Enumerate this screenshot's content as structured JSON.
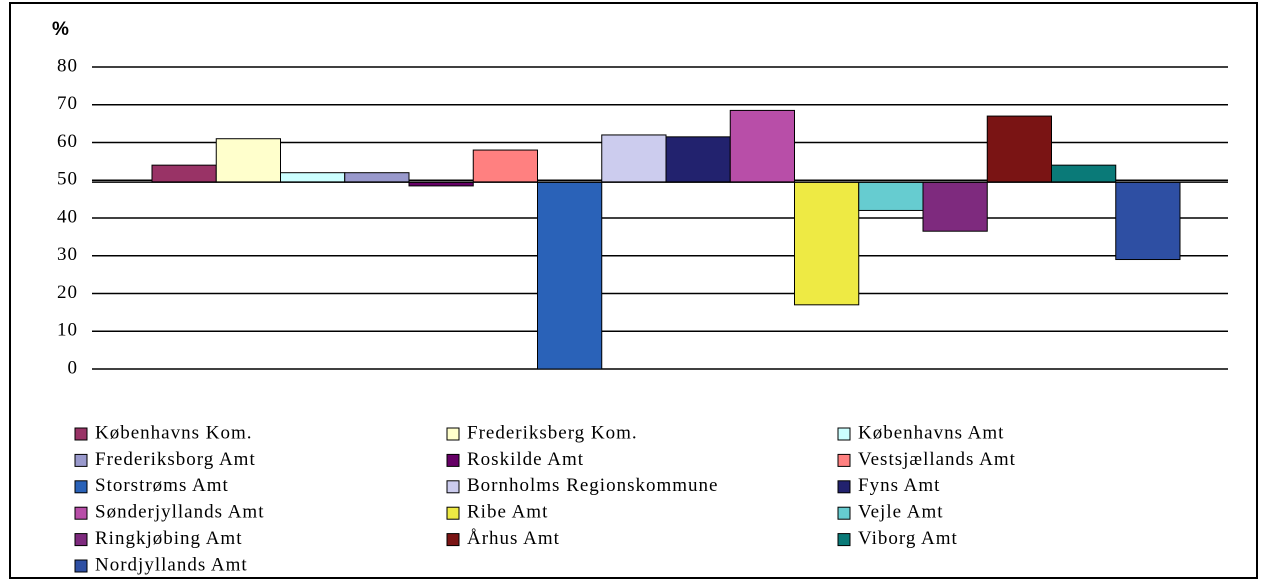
{
  "chart_data": {
    "type": "bar",
    "y_label": "%",
    "ylim": [
      0,
      80
    ],
    "yticks": [
      0,
      10,
      20,
      30,
      40,
      50,
      60,
      70,
      80
    ],
    "grid": true,
    "baseline": 49.5,
    "legend": "bottom",
    "series": [
      {
        "name": "Københavns Kom.",
        "color": "#993366",
        "values": [
          54
        ]
      },
      {
        "name": "Frederiksberg Kom.",
        "color": "#ffffcc",
        "values": [
          61
        ]
      },
      {
        "name": "Københavns Amt",
        "color": "#ccffff",
        "values": [
          52
        ]
      },
      {
        "name": "Frederiksborg Amt",
        "color": "#9999cc",
        "values": [
          52
        ]
      },
      {
        "name": "Roskilde Amt",
        "color": "#660066",
        "values": [
          48.5
        ]
      },
      {
        "name": "Vestsjællands Amt",
        "color": "#ff8080",
        "values": [
          58
        ]
      },
      {
        "name": "Storstrøms Amt",
        "color": "#2a62b8",
        "values": [
          0
        ]
      },
      {
        "name": "Bornholms Regionskommune",
        "color": "#ccccee",
        "values": [
          62
        ]
      },
      {
        "name": "Fyns Amt",
        "color": "#22226e",
        "values": [
          61.5
        ]
      },
      {
        "name": "Sønderjyllands Amt",
        "color": "#b84ea8",
        "values": [
          68.5
        ]
      },
      {
        "name": "Ribe Amt",
        "color": "#eeea44",
        "values": [
          17
        ]
      },
      {
        "name": "Vejle Amt",
        "color": "#66ccd0",
        "values": [
          42
        ]
      },
      {
        "name": "Ringkjøbing Amt",
        "color": "#7e2a7e",
        "values": [
          36.5
        ]
      },
      {
        "name": "Århus Amt",
        "color": "#7a1414",
        "values": [
          67
        ]
      },
      {
        "name": "Viborg Amt",
        "color": "#0a7a78",
        "values": [
          54
        ]
      },
      {
        "name": "Nordjyllands Amt",
        "color": "#2e4fa3",
        "values": [
          29
        ]
      }
    ]
  }
}
